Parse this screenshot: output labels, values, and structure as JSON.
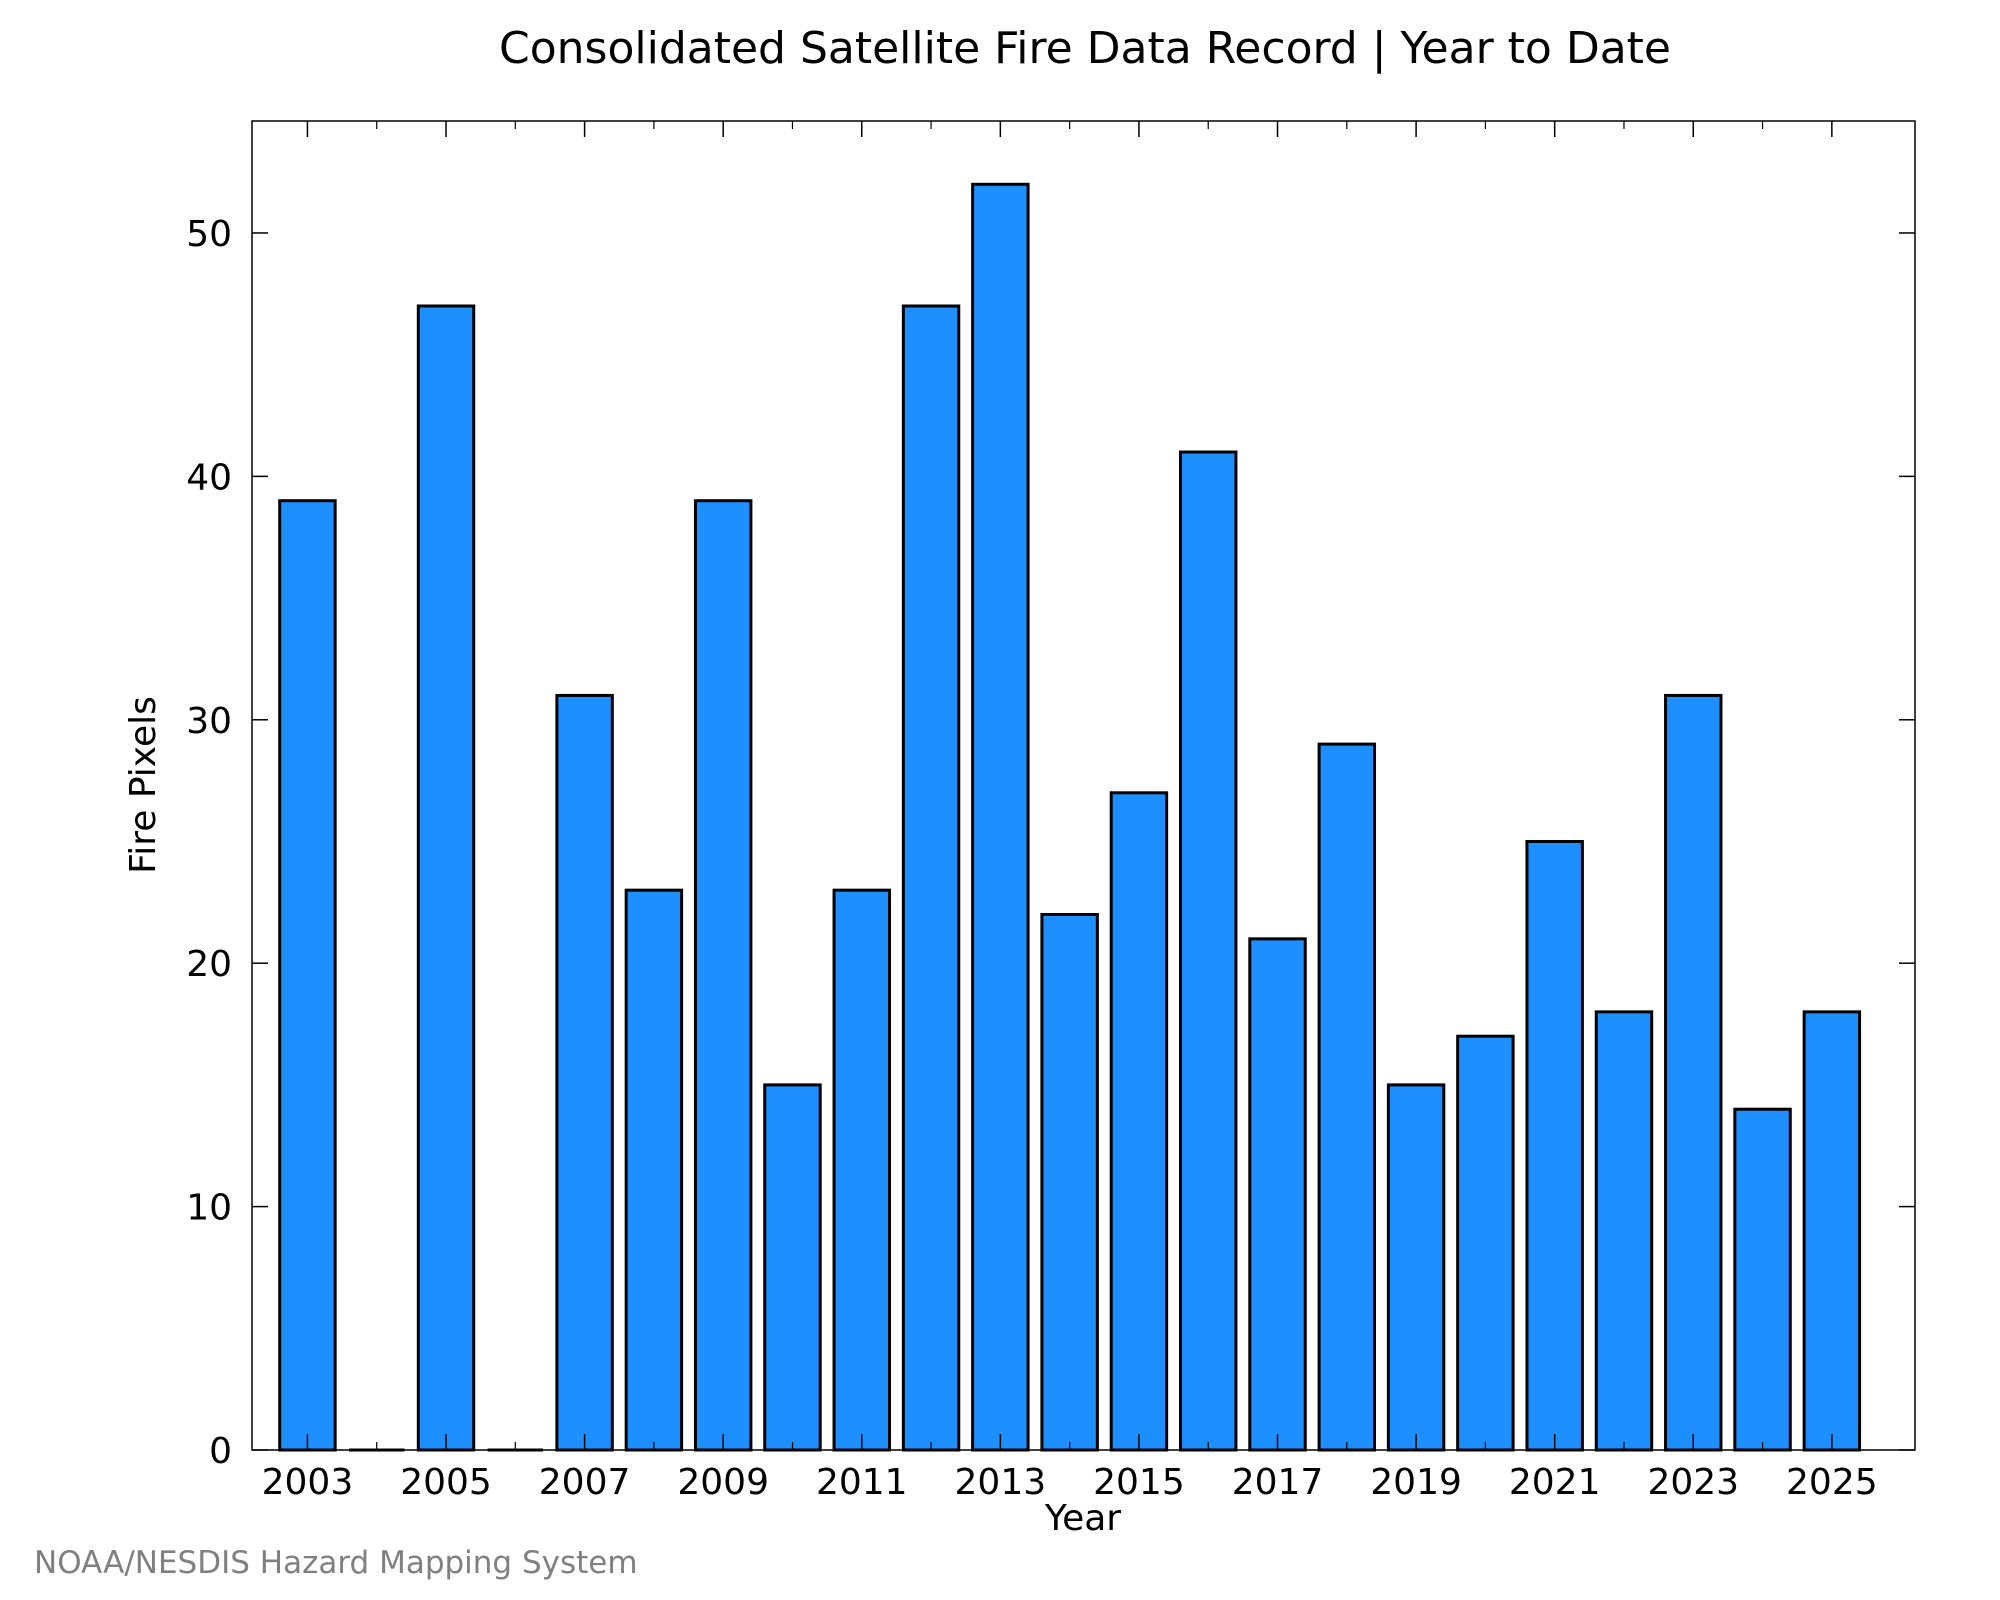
{
  "chart_data": {
    "type": "bar",
    "title": "Consolidated Satellite Fire Data Record | Year to Date",
    "xlabel": "Year",
    "ylabel": "Fire Pixels",
    "x": [
      2003,
      2004,
      2005,
      2006,
      2007,
      2008,
      2009,
      2010,
      2011,
      2012,
      2013,
      2014,
      2015,
      2016,
      2017,
      2018,
      2019,
      2020,
      2021,
      2022,
      2023,
      2024,
      2025
    ],
    "values": [
      39,
      0,
      47,
      0,
      31,
      23,
      39,
      15,
      23,
      47,
      52,
      22,
      27,
      41,
      21,
      29,
      15,
      17,
      25,
      18,
      31,
      14,
      18
    ],
    "xlim": [
      2002.2,
      2026.2
    ],
    "ylim": [
      0,
      54.6
    ],
    "xticks": [
      "2003",
      "2005",
      "2007",
      "2009",
      "2011",
      "2013",
      "2015",
      "2017",
      "2019",
      "2021",
      "2023",
      "2025"
    ],
    "yticks": [
      "0",
      "10",
      "20",
      "30",
      "40",
      "50"
    ],
    "grid": false,
    "bar_color": "#1E8FFF",
    "edge_color": "#000000"
  },
  "credit": "NOAA/NESDIS Hazard Mapping System"
}
